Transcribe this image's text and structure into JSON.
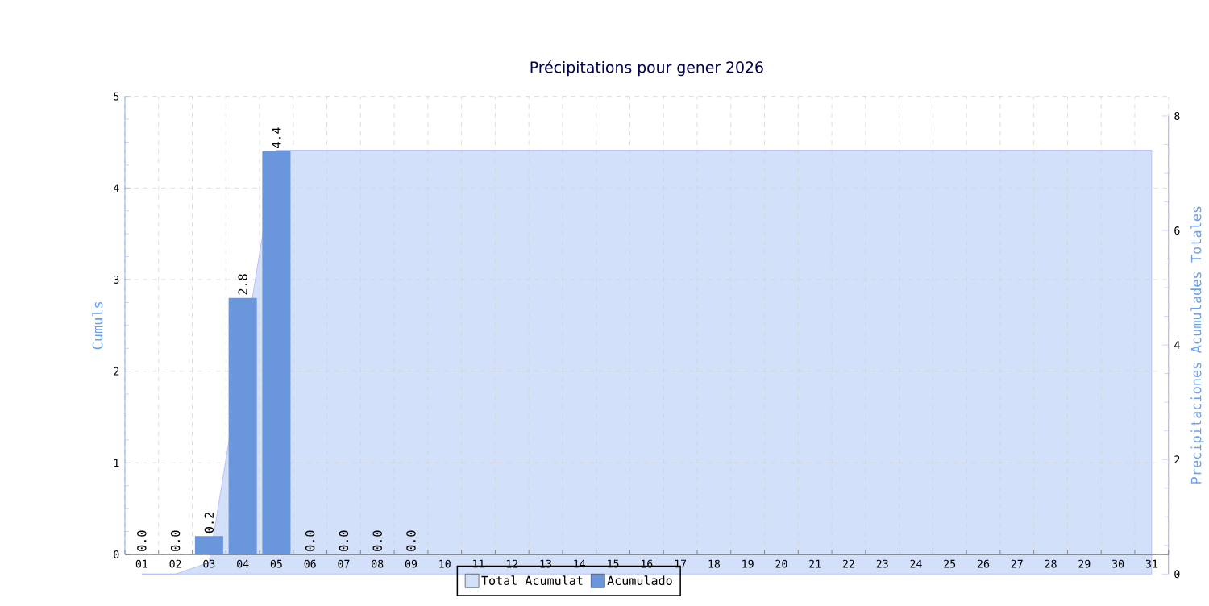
{
  "chart_data": {
    "type": "bar",
    "title": "Précipitations pour gener 2026",
    "ylabel": "Cumuls",
    "y2label": "Precipitaciones Acumulades Totales",
    "categories": [
      "01",
      "02",
      "03",
      "04",
      "05",
      "06",
      "07",
      "08",
      "09",
      "10",
      "11",
      "12",
      "13",
      "14",
      "15",
      "16",
      "17",
      "18",
      "19",
      "20",
      "21",
      "22",
      "23",
      "24",
      "25",
      "26",
      "27",
      "28",
      "29",
      "30",
      "31"
    ],
    "series": [
      {
        "name": "Total Acumulat",
        "type": "area",
        "axis": "y2",
        "color": "#d3e0f9",
        "values": [
          0,
          0,
          0.2,
          null,
          7.4,
          7.4,
          7.4,
          7.4,
          7.4,
          7.4,
          7.4,
          7.4,
          7.4,
          7.4,
          7.4,
          7.4,
          7.4,
          7.4,
          7.4,
          7.4,
          7.4,
          7.4,
          7.4,
          7.4,
          7.4,
          7.4,
          7.4,
          7.4,
          7.4,
          7.4,
          7.4
        ]
      },
      {
        "name": "Acumulado",
        "type": "bar",
        "color": "#6a96dc",
        "values": [
          0,
          0,
          0.2,
          2.8,
          4.4,
          0,
          0,
          0,
          0,
          null,
          null,
          null,
          null,
          null,
          null,
          null,
          null,
          null,
          null,
          null,
          null,
          null,
          null,
          null,
          null,
          null,
          null,
          null,
          null,
          null,
          null
        ],
        "value_labels": [
          "0.0",
          "0.0",
          "0.2",
          "2.8",
          "4.4",
          "0.0",
          "0.0",
          "0.0",
          "0.0",
          null,
          null,
          null,
          null,
          null,
          null,
          null,
          null,
          null,
          null,
          null,
          null,
          null,
          null,
          null,
          null,
          null,
          null,
          null,
          null,
          null,
          null
        ]
      }
    ],
    "ylim": [
      0,
      5
    ],
    "yticks": [
      0,
      1,
      2,
      3,
      4,
      5
    ],
    "y2lim": [
      0,
      8
    ],
    "y2ticks": [
      0,
      2,
      4,
      6,
      8
    ],
    "grid": true,
    "legend": "bottom"
  }
}
